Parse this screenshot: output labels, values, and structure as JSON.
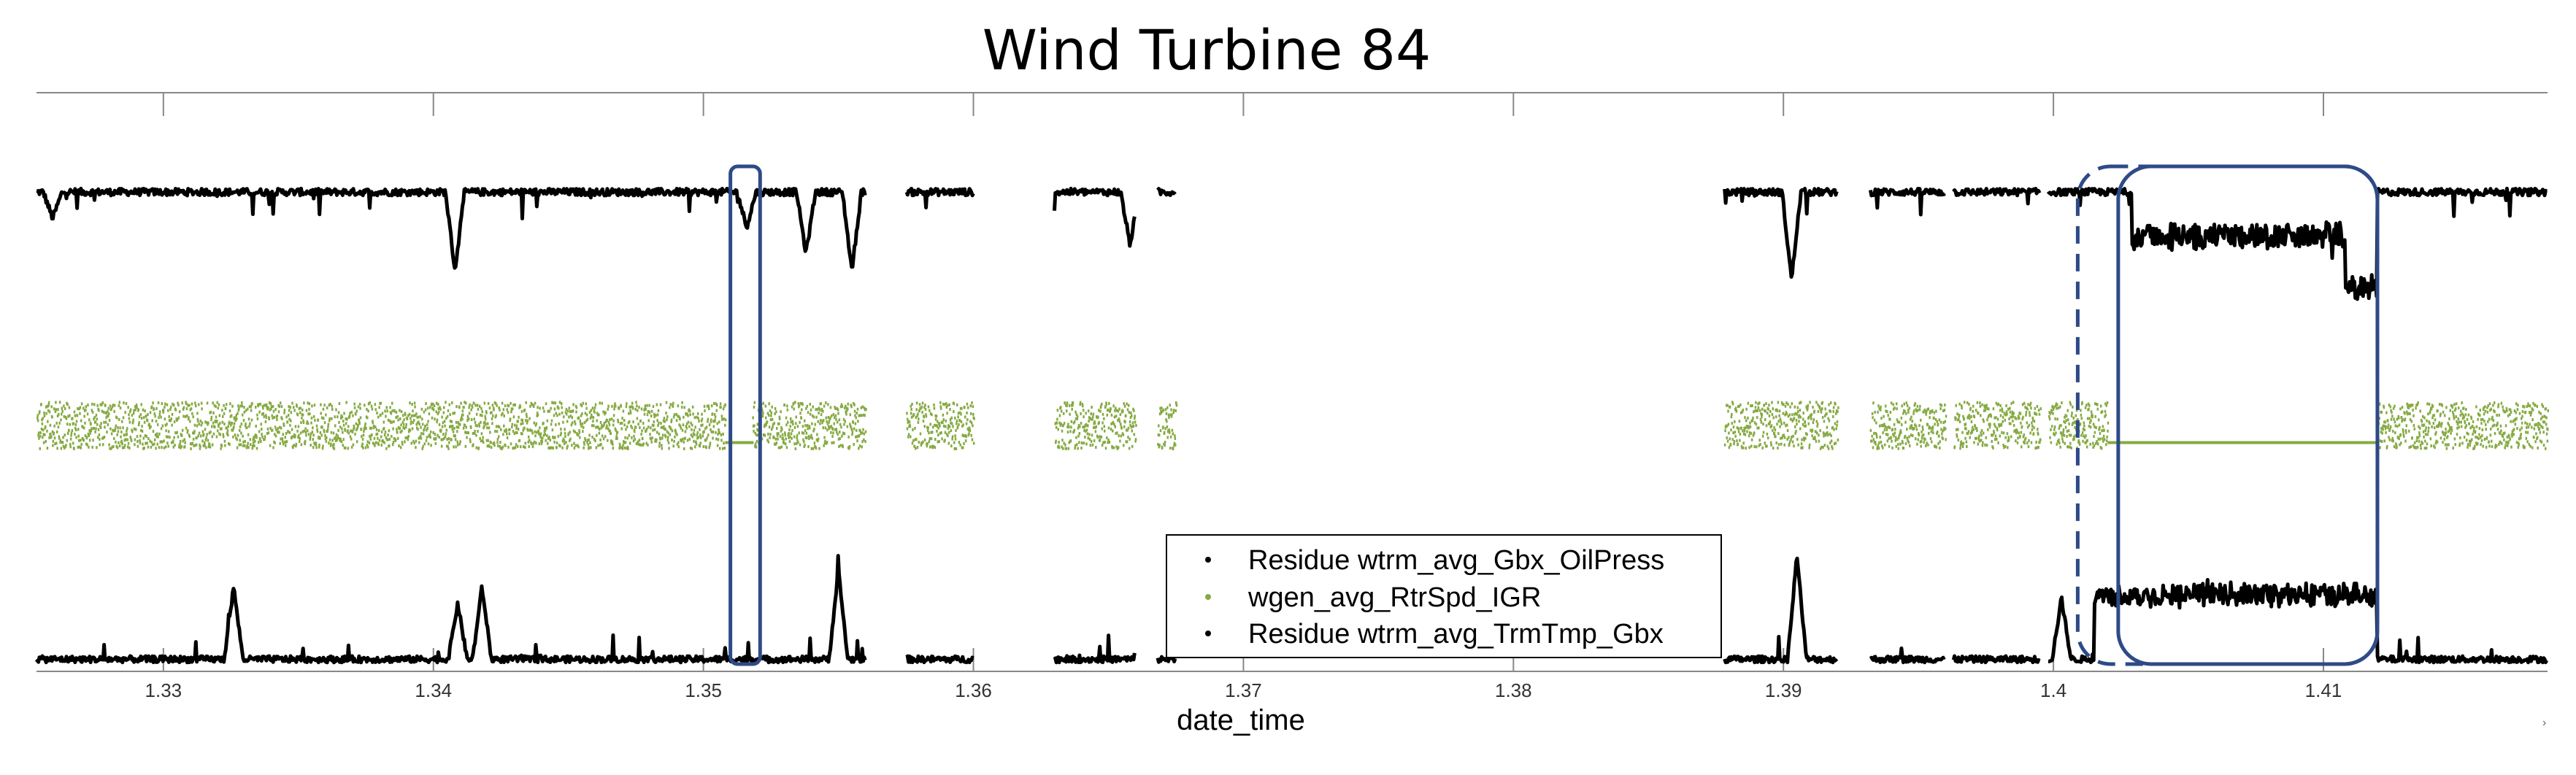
{
  "chart_data": {
    "type": "line",
    "title": "Wind Turbine 84",
    "xlabel": "date_time",
    "ylabel": "",
    "xlim": [
      1.3253,
      1.4183
    ],
    "x_ticks": [
      1.33,
      1.34,
      1.35,
      1.36,
      1.37,
      1.38,
      1.39,
      1.4,
      1.41
    ],
    "x_tick_labels": [
      "1.33",
      "1.34",
      "1.35",
      "1.36",
      "1.37",
      "1.38",
      "1.39",
      "1.4",
      "1.41"
    ],
    "x_tick_scale_suffix": "›",
    "y_axis_visible": false,
    "grid": false,
    "legend_position": "bottom-center",
    "data_gap": [
      1.3675,
      1.3878
    ],
    "series": [
      {
        "name": "Residue wtrm_avg_Gbx_OilPress",
        "color": "#000000",
        "marker": "dot",
        "baseline": 0.82,
        "noise": 0.01,
        "dips": [
          [
            1.3259,
            0.15
          ],
          [
            1.3408,
            0.45
          ],
          [
            1.3516,
            0.2
          ],
          [
            1.3538,
            0.35
          ],
          [
            1.3555,
            0.45
          ],
          [
            1.3658,
            0.3
          ],
          [
            1.3903,
            0.5
          ]
        ],
        "shifts": [
          [
            1.4029,
            1.4108,
            -0.25
          ],
          [
            1.4108,
            1.412,
            -0.55
          ]
        ]
      },
      {
        "name": "wgen_avg_RtrSpd_IGR",
        "color": "#86aa44",
        "marker": "dot",
        "band": [
          0.3,
          0.45
        ],
        "flat_value": 0.3,
        "flat_ranges": [
          [
            1.3508,
            1.3518
          ],
          [
            1.402,
            1.412
          ]
        ]
      },
      {
        "name": "Residue wtrm_avg_TrmTmp_Gbx",
        "color": "#000000",
        "marker": "dot",
        "baseline": 0.03,
        "noise": 0.01,
        "spikes": [
          [
            1.3326,
            0.45
          ],
          [
            1.3409,
            0.35
          ],
          [
            1.3418,
            0.45
          ],
          [
            1.355,
            0.55
          ],
          [
            1.3663,
            0.4
          ],
          [
            1.3905,
            0.65
          ],
          [
            1.4003,
            0.38
          ]
        ],
        "shifts": [
          [
            1.4015,
            1.412,
            0.4
          ]
        ]
      }
    ],
    "annotations": [
      {
        "kind": "highlight_box",
        "style": "solid",
        "color": "#2e4a87",
        "x": [
          1.351,
          1.3521
        ]
      },
      {
        "kind": "highlight_box",
        "style": "dashed",
        "color": "#2e4a87",
        "x": [
          1.4009,
          1.412
        ]
      },
      {
        "kind": "highlight_box",
        "style": "solid",
        "color": "#2e4a87",
        "x": [
          1.4024,
          1.412
        ]
      }
    ]
  }
}
